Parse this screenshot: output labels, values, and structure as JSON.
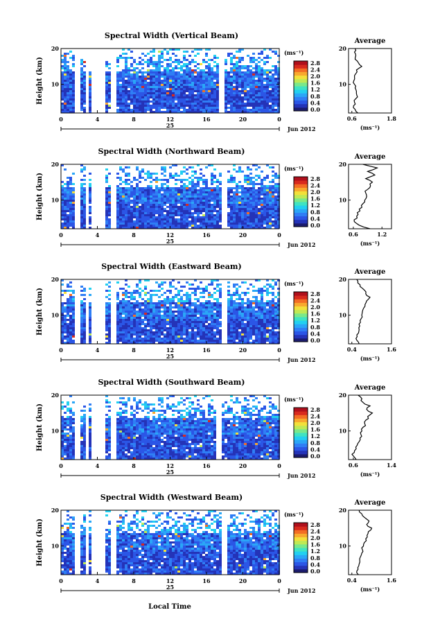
{
  "figure": {
    "xlabel": "Local Time",
    "ylabel": "Height (km)",
    "date_label": "Jun 2012",
    "day_label": "25",
    "average_title": "Average",
    "unit_label": "(ms⁻¹)",
    "profile_xlabel": "(ms⁻¹)"
  },
  "colors": {
    "scale": [
      "#1b1b6e",
      "#2433b8",
      "#2b56e6",
      "#2f7ef5",
      "#2aa6f7",
      "#22d0f0",
      "#3fe3c2",
      "#7ae88a",
      "#bfe955",
      "#f3e03a",
      "#f8a92e",
      "#f36d24",
      "#d82a1e",
      "#b0101c"
    ],
    "background": "#ffffff"
  },
  "chart_data": [
    {
      "type": "heatmap",
      "title": "Spectral Width (Vertical Beam)",
      "x_ticks": [
        "0",
        "4",
        "8",
        "12",
        "16",
        "20",
        "0"
      ],
      "xlim": [
        0,
        24
      ],
      "y_ticks": [
        "10",
        "20"
      ],
      "ylim": [
        2,
        20
      ],
      "colorbar_ticks": [
        "0.0",
        "0.4",
        "0.8",
        "1.2",
        "1.6",
        "2.0",
        "2.4",
        "2.8"
      ],
      "colorbar_range": [
        0,
        3.0
      ],
      "data_gaps_hours": [
        [
          1.5,
          2.0
        ],
        [
          2.5,
          2.9
        ],
        [
          3.3,
          4.7
        ],
        [
          5.3,
          6.0
        ],
        [
          17.3,
          17.7
        ]
      ],
      "profile": {
        "x_ticks": [
          "0.6",
          "1.8"
        ],
        "xlim": [
          0.5,
          1.8
        ],
        "y_ticks": [
          "10",
          "20"
        ],
        "ylim": [
          2,
          20
        ],
        "height_km": [
          2,
          3,
          4,
          5,
          6,
          7,
          8,
          9,
          10,
          11,
          12,
          13,
          14,
          15,
          16,
          17,
          18,
          19,
          20
        ],
        "values": [
          0.78,
          0.7,
          0.65,
          0.68,
          0.72,
          0.75,
          0.74,
          0.7,
          0.68,
          0.66,
          0.68,
          0.72,
          0.74,
          0.9,
          0.8,
          0.7,
          0.72,
          0.68,
          0.7
        ]
      }
    },
    {
      "type": "heatmap",
      "title": "Spectral Width (Northward Beam)",
      "x_ticks": [
        "0",
        "4",
        "8",
        "12",
        "16",
        "20",
        "0"
      ],
      "xlim": [
        0,
        24
      ],
      "y_ticks": [
        "10",
        "20"
      ],
      "ylim": [
        2,
        20
      ],
      "colorbar_ticks": [
        "0.0",
        "0.4",
        "0.8",
        "1.2",
        "1.6",
        "2.0",
        "2.4",
        "2.8"
      ],
      "colorbar_range": [
        0,
        3.0
      ],
      "data_gaps_hours": [
        [
          1.5,
          2.0
        ],
        [
          2.5,
          2.9
        ],
        [
          3.3,
          4.7
        ],
        [
          5.3,
          6.0
        ],
        [
          17.6,
          18.0
        ]
      ],
      "profile": {
        "x_ticks": [
          "0.6",
          "1.2"
        ],
        "xlim": [
          0.5,
          1.4
        ],
        "y_ticks": [
          "10",
          "20"
        ],
        "ylim": [
          2,
          20
        ],
        "height_km": [
          2,
          3,
          4,
          5,
          6,
          7,
          8,
          9,
          10,
          11,
          12,
          13,
          14,
          15,
          16,
          17,
          18,
          19,
          20
        ],
        "values": [
          0.95,
          0.72,
          0.62,
          0.68,
          0.7,
          0.74,
          0.78,
          0.8,
          0.84,
          0.88,
          0.86,
          0.9,
          0.96,
          1.0,
          0.86,
          1.05,
          0.9,
          1.1,
          0.8
        ]
      }
    },
    {
      "type": "heatmap",
      "title": "Spectral Width (Eastward Beam)",
      "x_ticks": [
        "0",
        "4",
        "8",
        "12",
        "16",
        "20",
        "0"
      ],
      "xlim": [
        0,
        24
      ],
      "y_ticks": [
        "10",
        "20"
      ],
      "ylim": [
        2,
        20
      ],
      "colorbar_ticks": [
        "0.0",
        "0.4",
        "0.8",
        "1.2",
        "1.6",
        "2.0",
        "2.4",
        "2.8"
      ],
      "colorbar_range": [
        0,
        3.0
      ],
      "data_gaps_hours": [
        [
          1.5,
          2.0
        ],
        [
          2.5,
          2.9
        ],
        [
          3.3,
          4.7
        ],
        [
          5.3,
          6.0
        ],
        [
          17.6,
          18.0
        ]
      ],
      "profile": {
        "x_ticks": [
          "0.4",
          "1.6"
        ],
        "xlim": [
          0.3,
          1.6
        ],
        "y_ticks": [
          "10",
          "20"
        ],
        "ylim": [
          2,
          20
        ],
        "height_km": [
          2,
          3,
          4,
          5,
          6,
          7,
          8,
          9,
          10,
          11,
          12,
          13,
          14,
          15,
          16,
          17,
          18,
          19,
          20
        ],
        "values": [
          0.62,
          0.55,
          0.56,
          0.6,
          0.62,
          0.64,
          0.66,
          0.68,
          0.7,
          0.72,
          0.76,
          0.8,
          0.85,
          0.95,
          0.82,
          0.78,
          0.65,
          0.58,
          0.55
        ]
      }
    },
    {
      "type": "heatmap",
      "title": "Spectral Width (Southward Beam)",
      "x_ticks": [
        "0",
        "4",
        "8",
        "12",
        "16",
        "20",
        "0"
      ],
      "xlim": [
        0,
        24
      ],
      "y_ticks": [
        "10",
        "20"
      ],
      "ylim": [
        2,
        20
      ],
      "colorbar_ticks": [
        "0.0",
        "0.4",
        "0.8",
        "1.2",
        "1.6",
        "2.0",
        "2.4",
        "2.8"
      ],
      "colorbar_range": [
        0,
        3.0
      ],
      "data_gaps_hours": [
        [
          1.5,
          2.0
        ],
        [
          2.5,
          2.9
        ],
        [
          3.3,
          4.7
        ],
        [
          5.3,
          6.0
        ],
        [
          17.0,
          17.5
        ]
      ],
      "profile": {
        "x_ticks": [
          "0.6",
          "1.4"
        ],
        "xlim": [
          0.5,
          1.4
        ],
        "y_ticks": [
          "10",
          "20"
        ],
        "ylim": [
          2,
          20
        ],
        "height_km": [
          2,
          3,
          4,
          5,
          6,
          7,
          8,
          9,
          10,
          11,
          12,
          13,
          14,
          15,
          16,
          17,
          18,
          19,
          20
        ],
        "values": [
          0.66,
          0.6,
          0.62,
          0.66,
          0.68,
          0.72,
          0.74,
          0.76,
          0.78,
          0.8,
          0.84,
          0.86,
          0.9,
          1.0,
          0.88,
          0.95,
          0.8,
          0.78,
          0.7
        ]
      }
    },
    {
      "type": "heatmap",
      "title": "Spectral Width (Westward Beam)",
      "x_ticks": [
        "0",
        "4",
        "8",
        "12",
        "16",
        "20",
        "0"
      ],
      "xlim": [
        0,
        24
      ],
      "y_ticks": [
        "10",
        "20"
      ],
      "ylim": [
        2,
        20
      ],
      "colorbar_ticks": [
        "0.0",
        "0.4",
        "0.8",
        "1.2",
        "1.6",
        "2.0",
        "2.4",
        "2.8"
      ],
      "colorbar_range": [
        0,
        3.0
      ],
      "data_gaps_hours": [
        [
          1.5,
          2.0
        ],
        [
          2.5,
          2.9
        ],
        [
          3.3,
          4.7
        ],
        [
          5.3,
          6.0
        ],
        [
          17.6,
          18.0
        ]
      ],
      "profile": {
        "x_ticks": [
          "0.4",
          "1.6"
        ],
        "xlim": [
          0.3,
          1.6
        ],
        "y_ticks": [
          "10",
          "20"
        ],
        "ylim": [
          2,
          20
        ],
        "height_km": [
          2,
          3,
          4,
          5,
          6,
          7,
          8,
          9,
          10,
          11,
          12,
          13,
          14,
          15,
          16,
          17,
          18,
          19,
          20
        ],
        "values": [
          0.6,
          0.55,
          0.58,
          0.62,
          0.64,
          0.66,
          0.7,
          0.72,
          0.75,
          0.78,
          0.82,
          0.86,
          0.9,
          1.0,
          0.85,
          0.92,
          0.78,
          0.7,
          0.62
        ]
      }
    }
  ]
}
